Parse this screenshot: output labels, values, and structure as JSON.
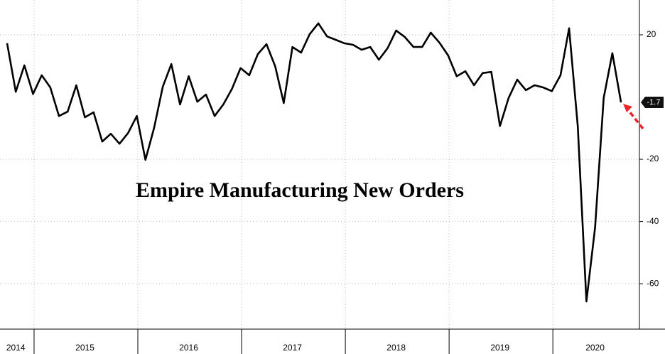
{
  "chart_data": {
    "type": "line",
    "title": "Empire Manufacturing New Orders",
    "categories": [
      null,
      "2014",
      null,
      null,
      null,
      null,
      null,
      null,
      null,
      "2015",
      null,
      null,
      null,
      null,
      null,
      null,
      null,
      null,
      null,
      null,
      null,
      "2016",
      null,
      null,
      null,
      null,
      null,
      null,
      null,
      null,
      null,
      null,
      null,
      "2017",
      null,
      null,
      null,
      null,
      null,
      null,
      null,
      null,
      null,
      null,
      null,
      "2018",
      null,
      null,
      null,
      null,
      null,
      null,
      null,
      null,
      null,
      null,
      null,
      "2019",
      null,
      null,
      null,
      null,
      null,
      null,
      null,
      null,
      null,
      null,
      "2020",
      null,
      null,
      null
    ],
    "series": [
      {
        "name": "Empire Manufacturing New Orders",
        "color": "#000000",
        "values": [
          17.3,
          1.7,
          10.2,
          1.0,
          7.0,
          3.1,
          -6.1,
          -4.7,
          3.8,
          -6.5,
          -4.9,
          -14.3,
          -11.8,
          -15.0,
          -11.5,
          -6.1,
          -20.2,
          -9.9,
          3.3,
          10.6,
          -2.4,
          6.7,
          -1.5,
          0.8,
          -6.1,
          -2.4,
          2.6,
          9.3,
          7.0,
          13.8,
          17.0,
          9.9,
          -1.9,
          16.1,
          14.3,
          20.2,
          23.7,
          19.5,
          18.4,
          17.3,
          16.8,
          15.2,
          16.1,
          12.0,
          15.7,
          21.4,
          19.3,
          16.1,
          16.1,
          20.7,
          17.5,
          13.4,
          6.7,
          8.3,
          3.8,
          7.7,
          8.1,
          -9.3,
          -0.3,
          5.6,
          2.2,
          3.8,
          3.1,
          1.9,
          7.0,
          22.1,
          -9.3,
          -65.7,
          -41.9,
          -0.3,
          14.1,
          -1.7
        ]
      }
    ],
    "ylim": [
      -74.6,
      31.2
    ],
    "yticks": [
      20,
      -20,
      -40,
      -60
    ],
    "grid": true
  }
}
